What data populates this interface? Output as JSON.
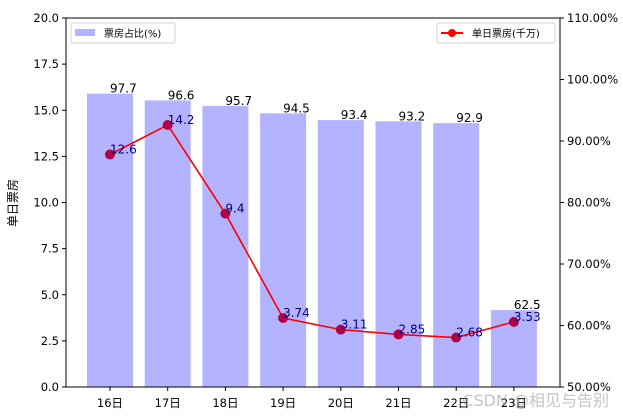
{
  "chart_data": {
    "type": "bar+line",
    "title": "",
    "categories": [
      "16日",
      "17日",
      "18日",
      "19日",
      "20日",
      "21日",
      "22日",
      "23日"
    ],
    "series": [
      {
        "name": "票房占比(%)",
        "type": "bar",
        "axis": "right",
        "color": "#b3b3ff",
        "values": [
          97.7,
          96.6,
          95.7,
          94.5,
          93.4,
          93.2,
          92.9,
          62.5
        ]
      },
      {
        "name": "单日票房(千万)",
        "type": "line",
        "axis": "left",
        "color": "#ff0000",
        "marker_color": "#b0004a",
        "values": [
          12.6,
          14.2,
          9.4,
          3.74,
          3.11,
          2.85,
          2.68,
          3.53
        ]
      }
    ],
    "xlabel": "",
    "ylabel": "单日票房",
    "ylim": [
      0,
      20
    ],
    "yticks": [
      "0.0",
      "2.5",
      "5.0",
      "7.5",
      "10.0",
      "12.5",
      "15.0",
      "17.5",
      "20.0"
    ],
    "y2lim": [
      50,
      110
    ],
    "y2ticks": [
      "50.00%",
      "60.00%",
      "70.00%",
      "80.00%",
      "90.00%",
      "100.00%",
      "110.00%"
    ],
    "legend": [
      {
        "label": "票房占比(%)",
        "position": "upper left"
      },
      {
        "label": "单日票房(千万)",
        "position": "upper right"
      }
    ],
    "grid": false
  },
  "watermark": "CSDN @相见与告别"
}
